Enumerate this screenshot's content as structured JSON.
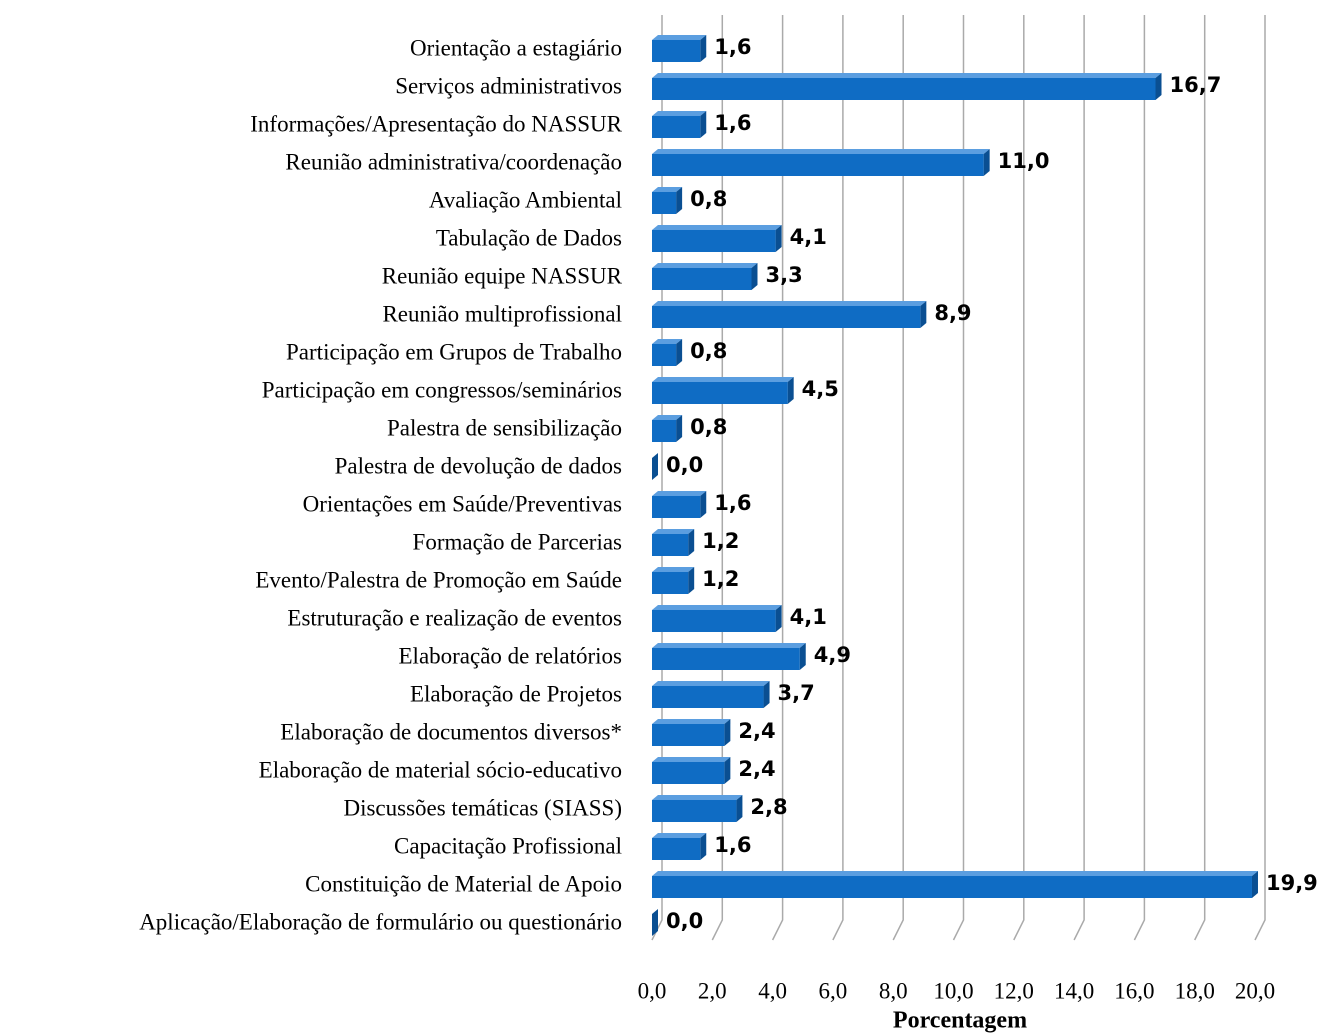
{
  "chart_data": {
    "type": "bar",
    "orientation": "horizontal",
    "x_axis_label": "Porcentagem",
    "categories": [
      "Orientação a estagiário",
      "Serviços administrativos",
      "Informações/Apresentação do NASSUR",
      "Reunião administrativa/coordenação",
      "Avaliação Ambiental",
      "Tabulação de Dados",
      "Reunião equipe NASSUR",
      "Reunião multiprofissional",
      "Participação em Grupos de Trabalho",
      "Participação em congressos/seminários",
      "Palestra de sensibilização",
      "Palestra de devolução de dados",
      "Orientações em Saúde/Preventivas",
      "Formação de Parcerias",
      "Evento/Palestra de Promoção em Saúde",
      "Estruturação e realização de eventos",
      "Elaboração de relatórios",
      "Elaboração de Projetos",
      "Elaboração de documentos diversos*",
      "Elaboração de material sócio-educativo",
      "Discussões temáticas (SIASS)",
      "Capacitação Profissional",
      "Constituição de Material de Apoio",
      "Aplicação/Elaboração de formulário ou questionário"
    ],
    "values": [
      1.6,
      16.7,
      1.6,
      11.0,
      0.8,
      4.1,
      3.3,
      8.9,
      0.8,
      4.5,
      0.8,
      0.0,
      1.6,
      1.2,
      1.2,
      4.1,
      4.9,
      3.7,
      2.4,
      2.4,
      2.8,
      1.6,
      19.9,
      0.0
    ],
    "value_labels": [
      "1,6",
      "16,7",
      "1,6",
      "11,0",
      "0,8",
      "4,1",
      "3,3",
      "8,9",
      "0,8",
      "4,5",
      "0,8",
      "0,0",
      "1,6",
      "1,2",
      "1,2",
      "4,1",
      "4,9",
      "3,7",
      "2,4",
      "2,4",
      "2,8",
      "1,6",
      "19,9",
      "0,0"
    ],
    "color": "#0f6cc4",
    "xlim": [
      0,
      20
    ],
    "xticks": [
      {
        "value": 0,
        "label": "0,0"
      },
      {
        "value": 2,
        "label": "2,0"
      },
      {
        "value": 4,
        "label": "4,0"
      },
      {
        "value": 6,
        "label": "6,0"
      },
      {
        "value": 8,
        "label": "8,0"
      },
      {
        "value": 10,
        "label": "10,0"
      },
      {
        "value": 12,
        "label": "12,0"
      },
      {
        "value": 14,
        "label": "14,0"
      },
      {
        "value": 16,
        "label": "16,0"
      },
      {
        "value": 18,
        "label": "18,0"
      },
      {
        "value": 20,
        "label": "20,0"
      }
    ],
    "grid": true
  }
}
